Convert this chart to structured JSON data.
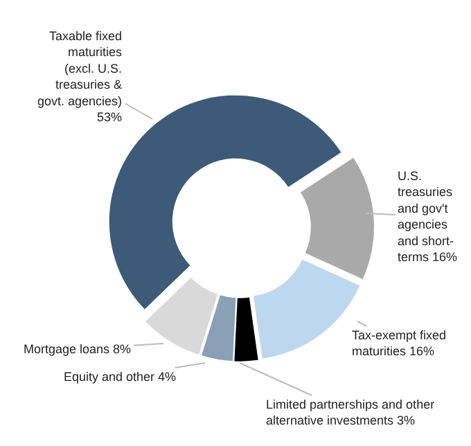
{
  "chart_data": {
    "type": "donut",
    "categories": [
      "Taxable fixed maturities (excl. U.S. treasuries & govt. agencies)",
      "U.S. treasuries and gov't agencies and short-terms",
      "Tax-exempt fixed maturities",
      "Limited partnerships and other alternative investments",
      "Equity and other",
      "Mortgage loans"
    ],
    "values": [
      53,
      16,
      16,
      3,
      4,
      8
    ],
    "colors": [
      "#3d5a78",
      "#a9a9a9",
      "#bdd7ee",
      "#000000",
      "#8aa0b5",
      "#d9d9d9"
    ],
    "value_labels": [
      "53%",
      "16%",
      "16%",
      "3%",
      "4%",
      "8%"
    ],
    "legend": false
  }
}
